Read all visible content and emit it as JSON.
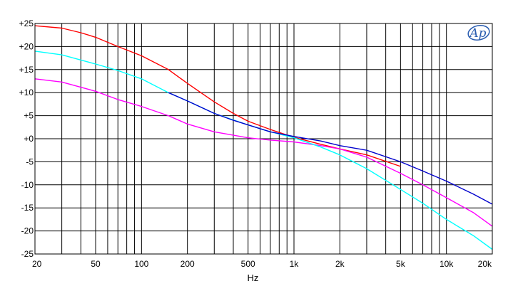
{
  "chart_data": {
    "type": "line",
    "title": "",
    "xlabel": "Hz",
    "ylabel": "",
    "x_scale": "log",
    "xlim": [
      20,
      20000
    ],
    "ylim": [
      -25,
      25
    ],
    "grid": true,
    "x_ticks": [
      {
        "value": 20,
        "label": "20"
      },
      {
        "value": 50,
        "label": "50"
      },
      {
        "value": 100,
        "label": "100"
      },
      {
        "value": 200,
        "label": "200"
      },
      {
        "value": 500,
        "label": "500"
      },
      {
        "value": 1000,
        "label": "1k"
      },
      {
        "value": 2000,
        "label": "2k"
      },
      {
        "value": 5000,
        "label": "5k"
      },
      {
        "value": 10000,
        "label": "10k"
      },
      {
        "value": 20000,
        "label": "20k"
      }
    ],
    "y_ticks": [
      {
        "value": 25,
        "label": "+25"
      },
      {
        "value": 20,
        "label": "+20"
      },
      {
        "value": 15,
        "label": "+15"
      },
      {
        "value": 10,
        "label": "+10"
      },
      {
        "value": 5,
        "label": "+5"
      },
      {
        "value": 0,
        "label": "+0"
      },
      {
        "value": -5,
        "label": "-5"
      },
      {
        "value": -10,
        "label": "-10"
      },
      {
        "value": -15,
        "label": "-15"
      },
      {
        "value": -20,
        "label": "-20"
      },
      {
        "value": -25,
        "label": "-25"
      }
    ],
    "series": [
      {
        "color": "#ff0000",
        "x": [
          20,
          30,
          40,
          50,
          70,
          100,
          150,
          200,
          300,
          400,
          500,
          700,
          1000,
          1500,
          2000,
          3000,
          5000
        ],
        "y": [
          24.5,
          24,
          23,
          22,
          20,
          18,
          15,
          12,
          8,
          5.5,
          3.8,
          2,
          0.3,
          -1.2,
          -2.2,
          -3.5,
          -6
        ]
      },
      {
        "color": "#ff00ff",
        "x": [
          2000,
          3000,
          5000,
          7000,
          10000,
          15000,
          20000
        ],
        "y": [
          -2.2,
          -4,
          -7.5,
          -10,
          -12.8,
          -16,
          -19
        ]
      },
      {
        "color": "#ff00ff",
        "x": [
          20,
          30,
          50,
          70,
          100,
          150,
          200,
          300,
          500,
          700,
          1000,
          1500,
          2000
        ],
        "y": [
          13,
          12.3,
          10.3,
          8.5,
          7,
          5,
          3.2,
          1.5,
          0.2,
          -0.3,
          -0.7,
          -1.5,
          -2.2
        ]
      },
      {
        "color": "#00ffff",
        "x": [
          20,
          30,
          50,
          70,
          100,
          150,
          200,
          300,
          500,
          700,
          1000,
          1500,
          2000,
          3000,
          5000,
          7000,
          10000,
          15000,
          20000
        ],
        "y": [
          19,
          18.2,
          16.2,
          14.8,
          13,
          10,
          8.2,
          5.5,
          3,
          1.5,
          0.2,
          -1.8,
          -3.5,
          -6.5,
          -11,
          -14,
          -17.5,
          -21,
          -24
        ]
      },
      {
        "color": "#0000cc",
        "x": [
          150,
          200,
          300,
          400,
          500,
          700,
          1000,
          1500,
          2000,
          3000,
          5000,
          7000,
          10000,
          15000,
          20000
        ],
        "y": [
          10,
          8.2,
          5.5,
          4,
          3,
          1.5,
          0.5,
          -0.5,
          -1.5,
          -2.5,
          -5,
          -7,
          -9.2,
          -12,
          -14.2
        ]
      }
    ]
  },
  "logo": {
    "name": "ap-logo-icon",
    "text": "Ap",
    "color": "#2a5db0"
  }
}
